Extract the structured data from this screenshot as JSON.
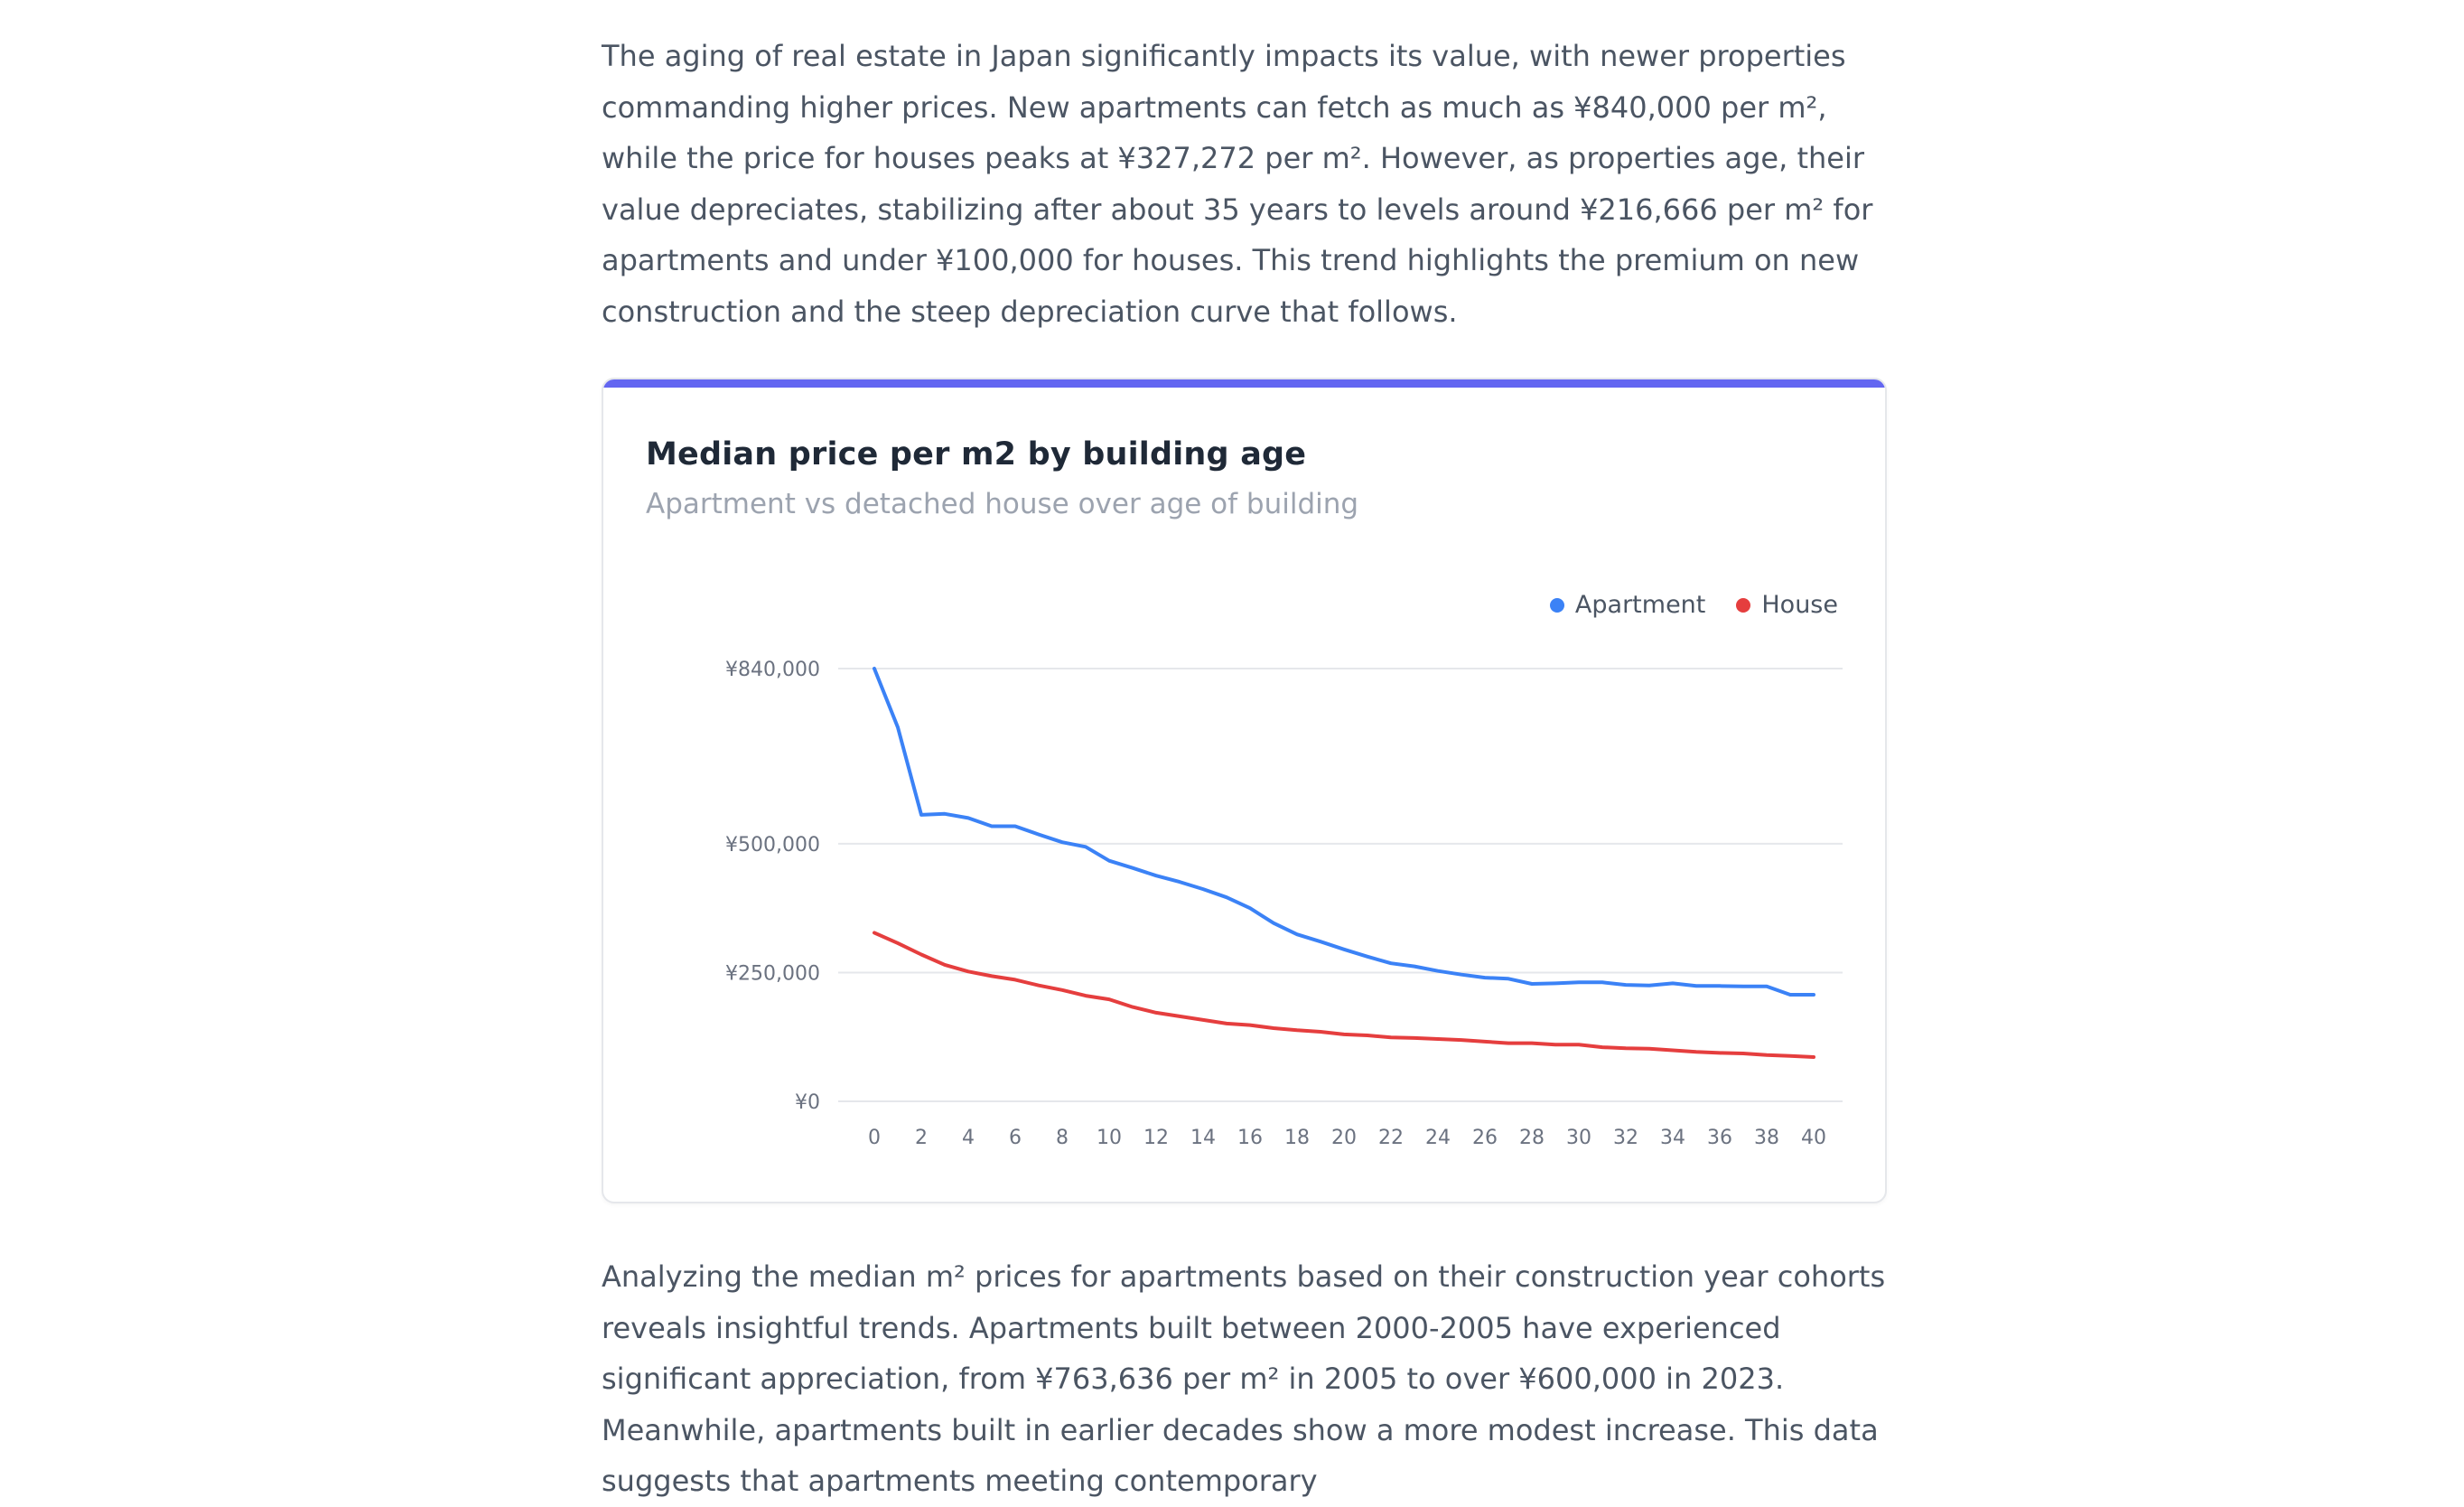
{
  "article": {
    "intro_text": "The aging of real estate in Japan significantly impacts its value, with newer properties commanding higher prices. New apartments can fetch as much as ¥840,000 per m², while the price for houses peaks at ¥327,272 per m². However, as properties age, their value depreciates, stabilizing after about 35 years to levels around ¥216,666 per m² for apartments and under ¥100,000 for houses. This trend highlights the premium on new construction and the steep depreciation curve that follows.",
    "followup_text": "Analyzing the median m² prices for apartments based on their construction year cohorts reveals insightful trends. Apartments built between 2000-2005 have experienced significant appreciation, from ¥763,636 per m² in 2005 to over ¥600,000 in 2023. Meanwhile, apartments built in earlier decades show a more modest increase. This data suggests that apartments meeting contemporary"
  },
  "card": {
    "title": "Median price per m2 by building age",
    "subtitle": "Apartment vs detached house over age of building",
    "accent_color": "#6366f1"
  },
  "chart_data": {
    "type": "line",
    "title": "Median price per m2 by building age",
    "subtitle": "Apartment vs detached house over age of building",
    "xlabel": "",
    "ylabel": "",
    "x": [
      0,
      1,
      2,
      3,
      4,
      5,
      6,
      7,
      8,
      9,
      10,
      11,
      12,
      13,
      14,
      15,
      16,
      17,
      18,
      19,
      20,
      21,
      22,
      23,
      24,
      25,
      26,
      27,
      28,
      29,
      30,
      31,
      32,
      33,
      34,
      35,
      36,
      37,
      38,
      39,
      40
    ],
    "x_ticks": [
      "0",
      "2",
      "4",
      "6",
      "8",
      "10",
      "12",
      "14",
      "16",
      "18",
      "20",
      "22",
      "24",
      "26",
      "28",
      "30",
      "32",
      "34",
      "36",
      "38",
      "40"
    ],
    "y_ticks": [
      {
        "value": 840000,
        "label": "¥840,000"
      },
      {
        "value": 500000,
        "label": "¥500,000"
      },
      {
        "value": 250000,
        "label": "¥250,000"
      },
      {
        "value": 0,
        "label": "¥0"
      }
    ],
    "ylim": [
      0,
      840000
    ],
    "grid": true,
    "legend_position": "top-right",
    "series": [
      {
        "name": "Apartment",
        "color": "#3b82f6",
        "values": [
          840000,
          726000,
          556000,
          558000,
          550000,
          534000,
          534000,
          518000,
          503000,
          494000,
          467000,
          453000,
          438000,
          426000,
          412000,
          396000,
          375000,
          346000,
          324000,
          310000,
          295000,
          281000,
          268000,
          262000,
          253000,
          246000,
          240000,
          238000,
          228000,
          229000,
          231000,
          231000,
          226000,
          225000,
          229000,
          224000,
          224000,
          223000,
          223000,
          207000,
          207000
        ]
      },
      {
        "name": "House",
        "color": "#e53e3e",
        "values": [
          327272,
          307000,
          285000,
          265000,
          252000,
          243000,
          236000,
          225000,
          216000,
          205000,
          198000,
          183000,
          172000,
          165000,
          158000,
          151000,
          148000,
          142000,
          138000,
          135000,
          130000,
          128000,
          124000,
          123000,
          121000,
          119000,
          116000,
          113000,
          113000,
          110000,
          110000,
          105000,
          103000,
          102000,
          99000,
          96000,
          94000,
          93000,
          90000,
          88000,
          86000
        ]
      }
    ]
  }
}
